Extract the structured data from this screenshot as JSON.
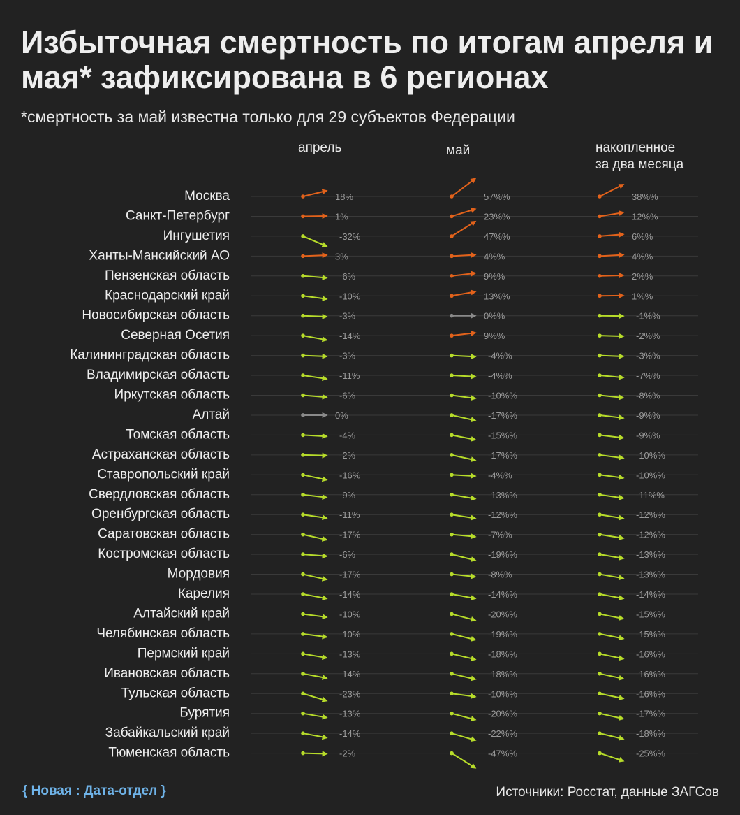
{
  "header": {
    "title": "Избыточная смертность по итогам апреля и мая* зафиксирована в 6 регионах",
    "subtitle": "*смертность за май известна только для 29 субъектов Федерации"
  },
  "footer": {
    "brand": "{ Новая : Дата-отдел }",
    "source": "Источники: Росстат, данные ЗАГСов"
  },
  "colors": {
    "positive": "#e2621b",
    "negative": "#b7dc2a",
    "zero": "#8a8a8a",
    "grid": "#3a3a3a",
    "value_text": "#9a9a9a",
    "label_text": "#eeeeee",
    "brand": "#6fb3e8"
  },
  "chart_data": {
    "type": "slope",
    "columns": [
      "апрель",
      "май",
      "накопленное\nза два месяца"
    ],
    "column_keys": [
      "apr",
      "may",
      "cum"
    ],
    "column_suffix": [
      "%",
      "%%",
      "%%"
    ],
    "rows": [
      {
        "region": "Москва",
        "apr": 18,
        "may": 57,
        "cum": 38
      },
      {
        "region": "Санкт-Петербург",
        "apr": 1,
        "may": 23,
        "cum": 12
      },
      {
        "region": "Ингушетия",
        "apr": -32,
        "may": 47,
        "cum": 6
      },
      {
        "region": "Ханты-Мансийский АО",
        "apr": 3,
        "may": 4,
        "cum": 4
      },
      {
        "region": "Пензенская область",
        "apr": -6,
        "may": 9,
        "cum": 2
      },
      {
        "region": "Краснодарский край",
        "apr": -10,
        "may": 13,
        "cum": 1
      },
      {
        "region": "Новосибирская область",
        "apr": -3,
        "may": 0,
        "cum": -1
      },
      {
        "region": "Северная Осетия",
        "apr": -14,
        "may": 9,
        "cum": -2
      },
      {
        "region": "Калининградская область",
        "apr": -3,
        "may": -4,
        "cum": -3
      },
      {
        "region": "Владимирская область",
        "apr": -11,
        "may": -4,
        "cum": -7
      },
      {
        "region": "Иркутская область",
        "apr": -6,
        "may": -10,
        "cum": -8
      },
      {
        "region": "Алтай",
        "apr": 0,
        "may": -17,
        "cum": -9
      },
      {
        "region": "Томская область",
        "apr": -4,
        "may": -15,
        "cum": -9
      },
      {
        "region": "Астраханская область",
        "apr": -2,
        "may": -17,
        "cum": -10
      },
      {
        "region": "Ставропольский край",
        "apr": -16,
        "may": -4,
        "cum": -10
      },
      {
        "region": "Свердловская область",
        "apr": -9,
        "may": -13,
        "cum": -11
      },
      {
        "region": "Оренбургская область",
        "apr": -11,
        "may": -12,
        "cum": -12
      },
      {
        "region": "Саратовская область",
        "apr": -17,
        "may": -7,
        "cum": -12
      },
      {
        "region": "Костромская область",
        "apr": -6,
        "may": -19,
        "cum": -13
      },
      {
        "region": "Мордовия",
        "apr": -17,
        "may": -8,
        "cum": -13
      },
      {
        "region": "Карелия",
        "apr": -14,
        "may": -14,
        "cum": -14
      },
      {
        "region": "Алтайский край",
        "apr": -10,
        "may": -20,
        "cum": -15
      },
      {
        "region": "Челябинская область",
        "apr": -10,
        "may": -19,
        "cum": -15
      },
      {
        "region": "Пермский край",
        "apr": -13,
        "may": -18,
        "cum": -16
      },
      {
        "region": "Ивановская область",
        "apr": -14,
        "may": -18,
        "cum": -16
      },
      {
        "region": "Тульская область",
        "apr": -23,
        "may": -10,
        "cum": -16
      },
      {
        "region": "Бурятия",
        "apr": -13,
        "may": -20,
        "cum": -17
      },
      {
        "region": "Забайкальский край",
        "apr": -14,
        "may": -22,
        "cum": -18
      },
      {
        "region": "Тюменская область",
        "apr": -2,
        "may": -47,
        "cum": -25
      }
    ]
  }
}
